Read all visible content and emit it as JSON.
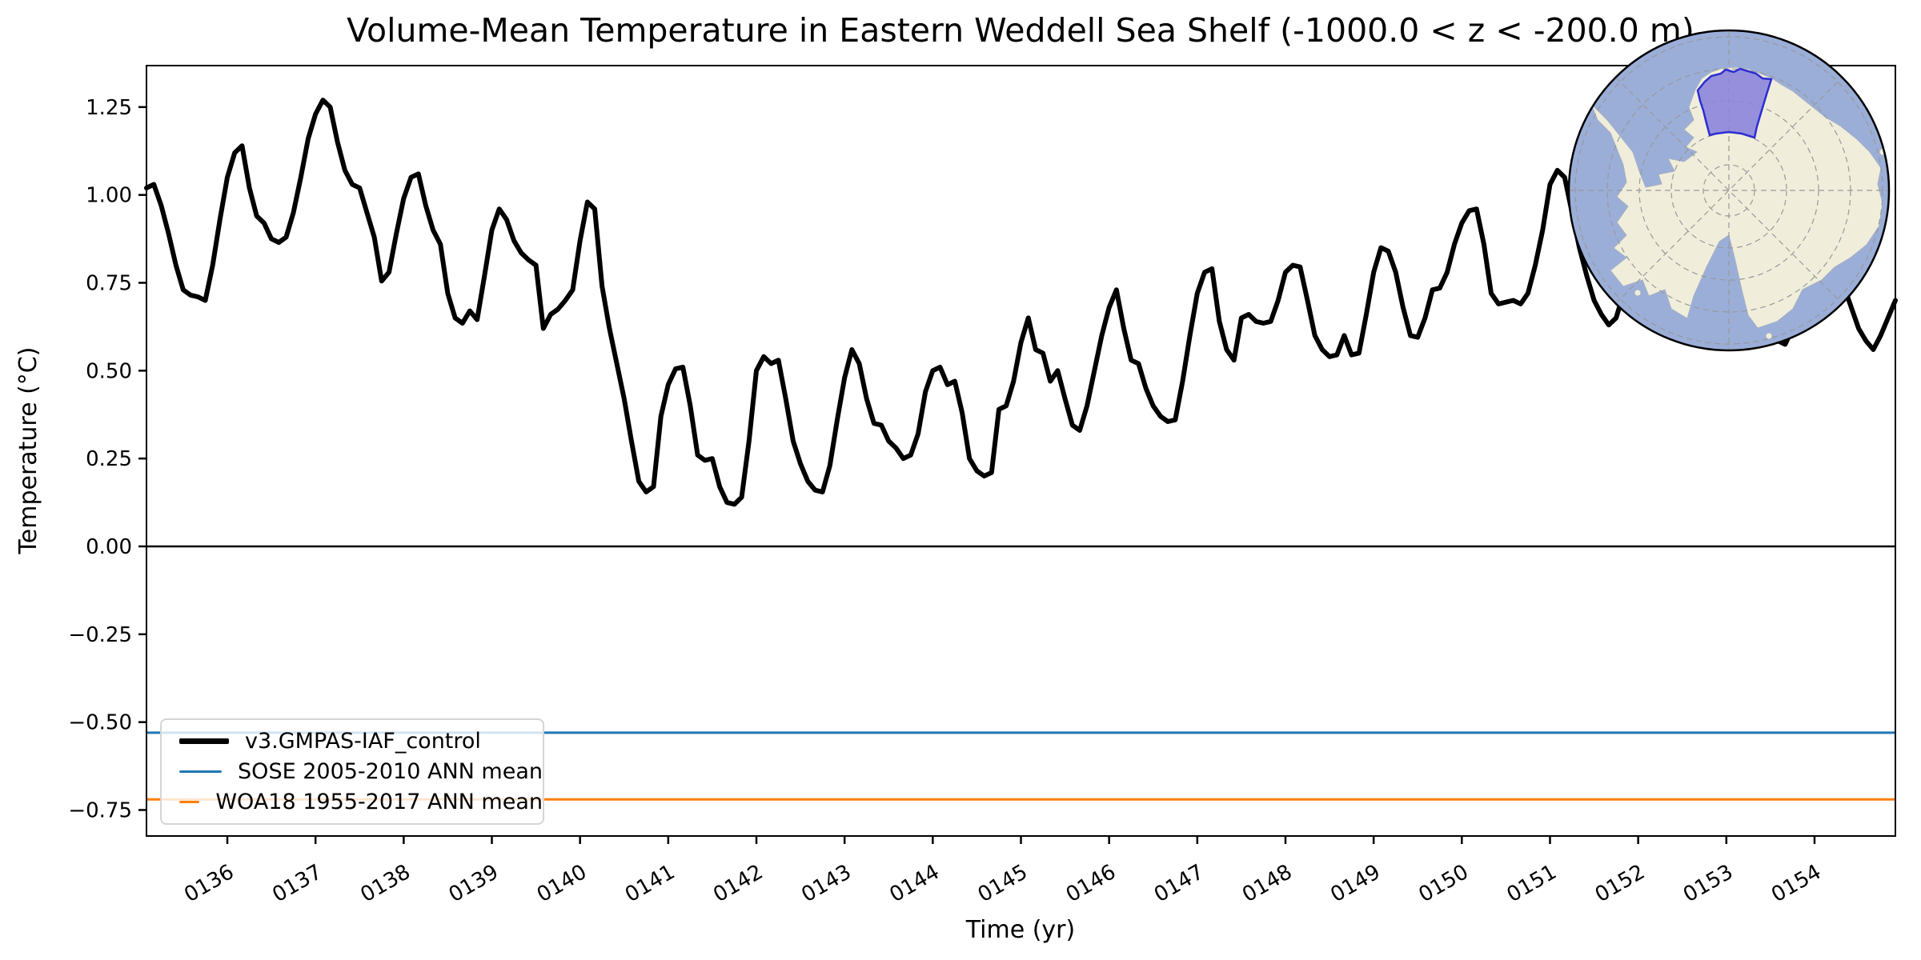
{
  "chart_data": {
    "type": "line",
    "title": "Volume-Mean Temperature in Eastern Weddell Sea Shelf (-1000.0 < z < -200.0 m)",
    "xlabel": "Time (yr)",
    "ylabel": "Temperature (°C)",
    "xlim": [
      135.083,
      154.917
    ],
    "ylim": [
      -0.824,
      1.368
    ],
    "grid": false,
    "legend_position": "lower left",
    "x_tick_values": [
      136,
      137,
      138,
      139,
      140,
      141,
      142,
      143,
      144,
      145,
      146,
      147,
      148,
      149,
      150,
      151,
      152,
      153,
      154
    ],
    "x_tick_labels": [
      "0136",
      "0137",
      "0138",
      "0139",
      "0140",
      "0141",
      "0142",
      "0143",
      "0144",
      "0145",
      "0146",
      "0147",
      "0148",
      "0149",
      "0150",
      "0151",
      "0152",
      "0153",
      "0154"
    ],
    "y_tick_values": [
      -0.75,
      -0.5,
      -0.25,
      0.0,
      0.25,
      0.5,
      0.75,
      1.0,
      1.25
    ],
    "y_tick_labels": [
      "−0.75",
      "−0.50",
      "−0.25",
      "0.00",
      "0.25",
      "0.50",
      "0.75",
      "1.00",
      "1.25"
    ],
    "zero_line": 0.0,
    "series": [
      {
        "name": "v3.GMPAS-IAF_control",
        "color": "#000000",
        "line_width": 6,
        "x_start": 135.0833,
        "x_step": 0.0833333,
        "values": [
          1.02,
          1.03,
          0.97,
          0.89,
          0.8,
          0.73,
          0.715,
          0.71,
          0.7,
          0.8,
          0.93,
          1.05,
          1.12,
          1.14,
          1.02,
          0.94,
          0.92,
          0.875,
          0.865,
          0.88,
          0.95,
          1.05,
          1.16,
          1.23,
          1.27,
          1.25,
          1.15,
          1.07,
          1.03,
          1.02,
          0.95,
          0.88,
          0.755,
          0.78,
          0.89,
          0.99,
          1.05,
          1.06,
          0.97,
          0.9,
          0.86,
          0.72,
          0.65,
          0.635,
          0.67,
          0.645,
          0.77,
          0.9,
          0.96,
          0.93,
          0.87,
          0.835,
          0.815,
          0.8,
          0.62,
          0.66,
          0.675,
          0.7,
          0.73,
          0.87,
          0.98,
          0.96,
          0.74,
          0.62,
          0.52,
          0.42,
          0.3,
          0.185,
          0.155,
          0.17,
          0.37,
          0.46,
          0.505,
          0.51,
          0.4,
          0.26,
          0.245,
          0.25,
          0.17,
          0.125,
          0.12,
          0.14,
          0.3,
          0.5,
          0.54,
          0.52,
          0.53,
          0.42,
          0.3,
          0.235,
          0.185,
          0.16,
          0.155,
          0.23,
          0.36,
          0.48,
          0.56,
          0.52,
          0.42,
          0.35,
          0.345,
          0.3,
          0.28,
          0.25,
          0.26,
          0.32,
          0.44,
          0.5,
          0.51,
          0.46,
          0.47,
          0.38,
          0.25,
          0.215,
          0.2,
          0.21,
          0.39,
          0.4,
          0.47,
          0.58,
          0.65,
          0.56,
          0.55,
          0.47,
          0.5,
          0.42,
          0.345,
          0.33,
          0.4,
          0.5,
          0.6,
          0.68,
          0.73,
          0.62,
          0.53,
          0.52,
          0.45,
          0.4,
          0.37,
          0.355,
          0.36,
          0.47,
          0.6,
          0.72,
          0.78,
          0.79,
          0.64,
          0.56,
          0.53,
          0.65,
          0.66,
          0.64,
          0.635,
          0.64,
          0.7,
          0.78,
          0.8,
          0.795,
          0.7,
          0.6,
          0.56,
          0.54,
          0.545,
          0.6,
          0.545,
          0.55,
          0.66,
          0.78,
          0.85,
          0.84,
          0.78,
          0.68,
          0.6,
          0.595,
          0.65,
          0.73,
          0.735,
          0.78,
          0.86,
          0.92,
          0.955,
          0.96,
          0.86,
          0.72,
          0.69,
          0.695,
          0.7,
          0.69,
          0.72,
          0.8,
          0.9,
          1.03,
          1.07,
          1.05,
          0.95,
          0.85,
          0.77,
          0.7,
          0.66,
          0.63,
          0.65,
          0.72,
          0.82,
          0.92,
          1.0,
          0.98,
          0.9,
          0.8,
          0.73,
          0.67,
          0.64,
          0.62,
          0.65,
          0.72,
          0.82,
          0.92,
          0.99,
          0.97,
          0.89,
          0.8,
          0.72,
          0.63,
          0.585,
          0.575,
          0.62,
          0.7,
          0.8,
          0.9,
          0.97,
          0.95,
          0.85,
          0.74,
          0.68,
          0.62,
          0.585,
          0.56,
          0.6,
          0.65,
          0.7
        ]
      },
      {
        "name": "SOSE 2005-2010 ANN mean",
        "color": "#1f77b4",
        "line_width": 3,
        "constant": -0.53
      },
      {
        "name": "WOA18 1955-2017 ANN mean",
        "color": "#ff7f0e",
        "line_width": 3,
        "constant": -0.72
      }
    ]
  },
  "legend": {
    "entries": [
      {
        "sample_weight": 7
      },
      {
        "sample_weight": 3
      },
      {
        "sample_weight": 3
      }
    ]
  },
  "map_inset": {
    "kind": "south-polar orthographic globe",
    "highlight_region": "Eastern Weddell Sea Shelf",
    "colors": {
      "ocean": "#9aaed8",
      "land": "#f0eedb",
      "coast": "#a8b0c2",
      "region_fill": "#8c85dc",
      "region_border": "#2d2dd2",
      "graticule": "#999999",
      "outline": "#000000"
    }
  }
}
